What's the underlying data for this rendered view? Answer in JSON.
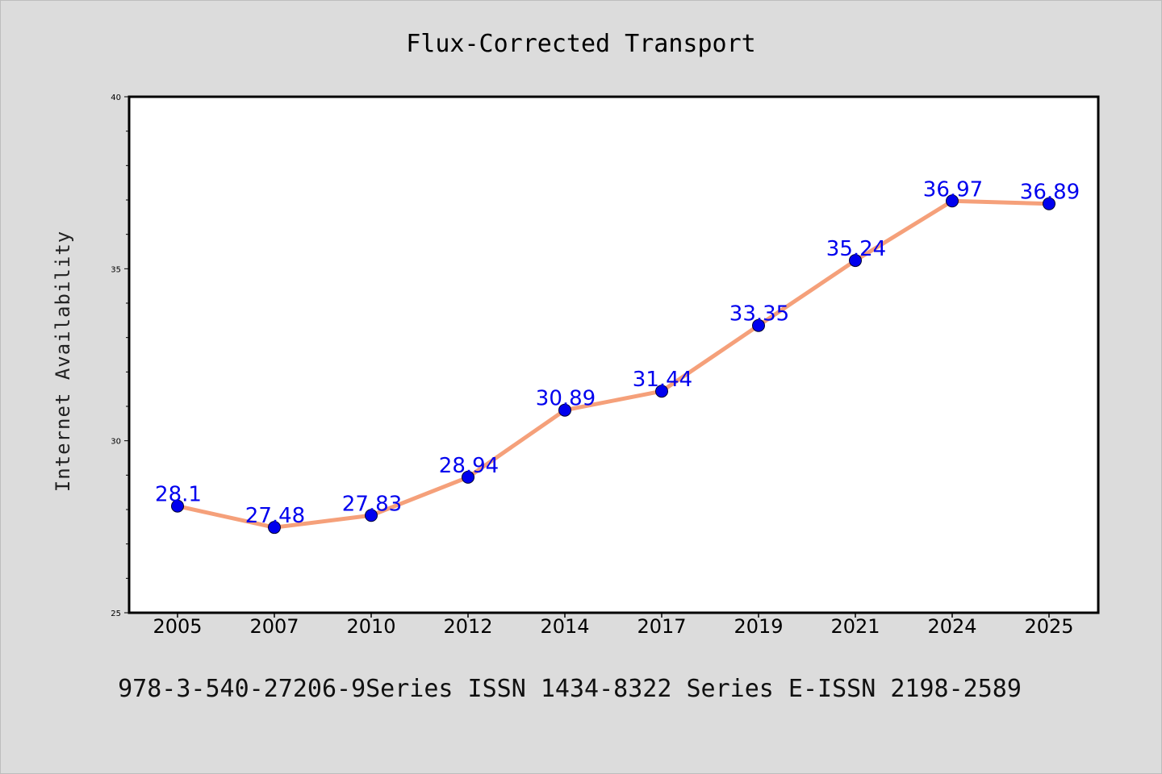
{
  "chart_data": {
    "type": "line",
    "title": "Flux-Corrected Transport",
    "xlabel": "",
    "ylabel": "Internet Availability",
    "footer": "978-3-540-27206-9Series ISSN 1434-8322 Series E-ISSN 2198-2589",
    "categories": [
      "2005",
      "2007",
      "2010",
      "2012",
      "2014",
      "2017",
      "2019",
      "2021",
      "2024",
      "2025"
    ],
    "values": [
      28.1,
      27.48,
      27.83,
      28.94,
      30.89,
      31.44,
      33.35,
      35.24,
      36.97,
      36.89
    ],
    "data_labels": [
      "28.1",
      "27.48",
      "27.83",
      "28.94",
      "30.89",
      "31.44",
      "33.35",
      "35.24",
      "36.97",
      "36.89"
    ],
    "ylim": [
      25,
      40
    ],
    "yticks": [
      "25",
      "30",
      "35",
      "40"
    ],
    "grid": false,
    "colors": {
      "line": "#f5a07a",
      "marker": "#0000ee",
      "label": "#0000ee",
      "background": "#dcdcdc",
      "plot_background": "#ffffff"
    }
  }
}
